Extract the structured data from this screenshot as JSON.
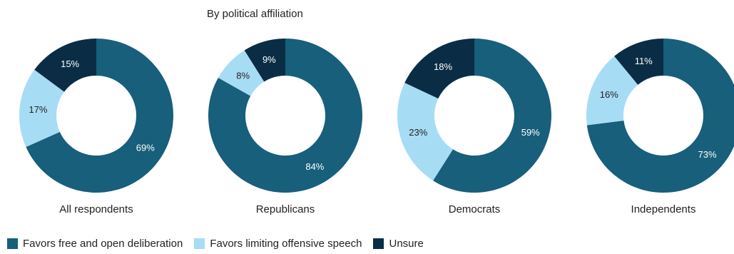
{
  "chart_data": {
    "type": "pie",
    "subtitle": "By political affiliation",
    "categories": [
      "Favors free and open deliberation",
      "Favors limiting offensive speech",
      "Unsure"
    ],
    "colors": [
      "#175f7a",
      "#a7dcf5",
      "#0a2d45"
    ],
    "charts": [
      {
        "label": "All respondents",
        "values": [
          69,
          17,
          15
        ],
        "value_labels": [
          "69%",
          "17%",
          "15%"
        ]
      },
      {
        "label": "Republicans",
        "values": [
          84,
          8,
          9
        ],
        "value_labels": [
          "84%",
          "8%",
          "9%"
        ]
      },
      {
        "label": "Democrats",
        "values": [
          59,
          23,
          18
        ],
        "value_labels": [
          "59%",
          "23%",
          "18%"
        ]
      },
      {
        "label": "Independents",
        "values": [
          73,
          16,
          11
        ],
        "value_labels": [
          "73%",
          "16%",
          "11%"
        ]
      }
    ]
  }
}
